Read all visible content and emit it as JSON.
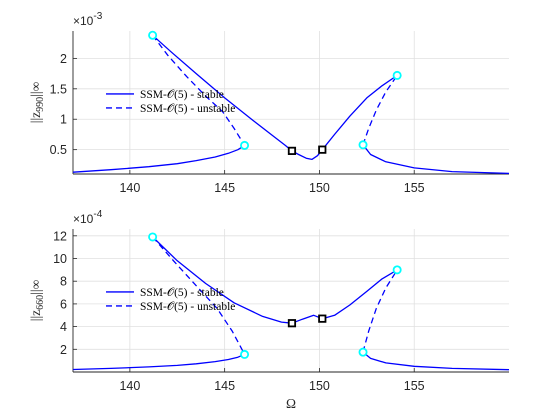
{
  "chart_data": [
    {
      "type": "line",
      "ylabel": "||z_990||∞",
      "ylabel_main": "||z",
      "ylabel_sub": "990",
      "ylabel_tail": "||∞",
      "xlabel": "",
      "xlim": [
        137,
        160
      ],
      "ylim": [
        0.1,
        2.45
      ],
      "y_exponent": "×10",
      "y_exponent_power": "-3",
      "xticks": [
        "140",
        "145",
        "150",
        "155"
      ],
      "xtick_values": [
        140,
        145,
        150,
        155
      ],
      "yticks": [
        "0.5",
        "1",
        "1.5",
        "2"
      ],
      "ytick_values": [
        0.5,
        1,
        1.5,
        2
      ],
      "grid": true,
      "legend": {
        "placement": "center-left",
        "entries": [
          {
            "label": "SSM-𝒪(5) - stable",
            "style": "solid"
          },
          {
            "label": "SSM-𝒪(5) - unstable",
            "style": "dashed"
          }
        ]
      },
      "series": [
        {
          "name": "SSM-𝒪(5) - stable",
          "style": "solid",
          "segments": [
            {
              "x": [
                137,
                139,
                141,
                142.5,
                143.5,
                144.5,
                145.2,
                145.7,
                146.05
              ],
              "y": [
                0.13,
                0.17,
                0.22,
                0.27,
                0.32,
                0.38,
                0.44,
                0.5,
                0.57
              ]
            },
            {
              "x": [
                141.2,
                142.2,
                143.5,
                145,
                146.5,
                147.5,
                148.2,
                148.55,
                148.9,
                149.3,
                149.6,
                149.9,
                150.15
              ],
              "y": [
                2.38,
                2.1,
                1.75,
                1.35,
                0.98,
                0.74,
                0.57,
                0.48,
                0.42,
                0.36,
                0.34,
                0.4,
                0.5
              ]
            },
            {
              "x": [
                150.15,
                150.8,
                151.6,
                152.5,
                153.3,
                154.1
              ],
              "y": [
                0.5,
                0.75,
                1.05,
                1.35,
                1.55,
                1.72
              ]
            },
            {
              "x": [
                152.3,
                152.7,
                153.5,
                155,
                157,
                160
              ],
              "y": [
                0.58,
                0.42,
                0.3,
                0.2,
                0.14,
                0.11
              ]
            }
          ]
        },
        {
          "name": "SSM-𝒪(5) - unstable",
          "style": "dashed",
          "segments": [
            {
              "x": [
                141.2,
                142,
                143,
                144,
                144.9,
                145.5,
                146.05
              ],
              "y": [
                2.38,
                2.05,
                1.7,
                1.38,
                1.12,
                0.85,
                0.57
              ]
            },
            {
              "x": [
                152.3,
                152.6,
                153,
                153.5,
                154.1
              ],
              "y": [
                0.58,
                0.85,
                1.15,
                1.45,
                1.72
              ]
            }
          ]
        }
      ],
      "markers": {
        "fold_points": {
          "color": "#00ffff",
          "points": [
            [
              141.2,
              2.38
            ],
            [
              146.05,
              0.57
            ],
            [
              152.3,
              0.58
            ],
            [
              154.1,
              1.72
            ]
          ]
        },
        "square_points": {
          "color": "#000000",
          "points": [
            [
              148.55,
              0.48
            ],
            [
              150.15,
              0.5
            ]
          ]
        }
      }
    },
    {
      "type": "line",
      "ylabel": "||z_660||∞",
      "ylabel_main": "||z",
      "ylabel_sub": "660",
      "ylabel_tail": "||∞",
      "xlabel": "Ω",
      "xlim": [
        137,
        160
      ],
      "ylim": [
        0,
        12.6
      ],
      "y_exponent": "×10",
      "y_exponent_power": "-4",
      "xticks": [
        "140",
        "145",
        "150",
        "155"
      ],
      "xtick_values": [
        140,
        145,
        150,
        155
      ],
      "yticks": [
        "2",
        "4",
        "6",
        "8",
        "10",
        "12"
      ],
      "ytick_values": [
        2,
        4,
        6,
        8,
        10,
        12
      ],
      "grid": true,
      "legend": {
        "placement": "center-left",
        "entries": [
          {
            "label": "SSM-𝒪(5) - stable",
            "style": "solid"
          },
          {
            "label": "SSM-𝒪(5) - unstable",
            "style": "dashed"
          }
        ]
      },
      "series": [
        {
          "name": "SSM-𝒪(5) - stable",
          "style": "solid",
          "segments": [
            {
              "x": [
                137,
                139,
                141,
                142.5,
                143.5,
                144.5,
                145.2,
                145.7,
                146.05
              ],
              "y": [
                0.22,
                0.32,
                0.45,
                0.58,
                0.72,
                0.92,
                1.1,
                1.3,
                1.55
              ]
            },
            {
              "x": [
                141.2,
                142.5,
                144,
                145.5,
                147,
                148,
                148.55,
                149.1,
                149.7,
                150.15
              ],
              "y": [
                11.9,
                9.8,
                7.8,
                6.1,
                4.9,
                4.4,
                4.3,
                4.65,
                5.0,
                4.7
              ]
            },
            {
              "x": [
                150.15,
                150.8,
                151.6,
                152.5,
                153.3,
                154.1
              ],
              "y": [
                4.7,
                5.0,
                5.9,
                7.1,
                8.2,
                9.0
              ]
            },
            {
              "x": [
                152.3,
                152.7,
                153.5,
                155,
                157,
                160
              ],
              "y": [
                1.75,
                1.2,
                0.8,
                0.5,
                0.32,
                0.2
              ]
            }
          ]
        },
        {
          "name": "SSM-𝒪(5) - unstable",
          "style": "dashed",
          "segments": [
            {
              "x": [
                141.2,
                142.3,
                143.5,
                144.6,
                145.4,
                146.05
              ],
              "y": [
                11.9,
                9.8,
                7.6,
                5.6,
                3.6,
                1.55
              ]
            },
            {
              "x": [
                152.3,
                152.6,
                153,
                153.5,
                154.1
              ],
              "y": [
                1.75,
                3.6,
                5.6,
                7.4,
                9.0
              ]
            }
          ]
        }
      ],
      "markers": {
        "fold_points": {
          "color": "#00ffff",
          "points": [
            [
              141.2,
              11.9
            ],
            [
              146.05,
              1.55
            ],
            [
              152.3,
              1.75
            ],
            [
              154.1,
              9.0
            ]
          ]
        },
        "square_points": {
          "color": "#000000",
          "points": [
            [
              148.55,
              4.3
            ],
            [
              150.15,
              4.7
            ]
          ]
        }
      }
    }
  ],
  "colors": {
    "line": "#0000ff",
    "fold": "#00ffff",
    "square": "#000000",
    "grid": "#e0e0e0",
    "axis": "#262626"
  }
}
